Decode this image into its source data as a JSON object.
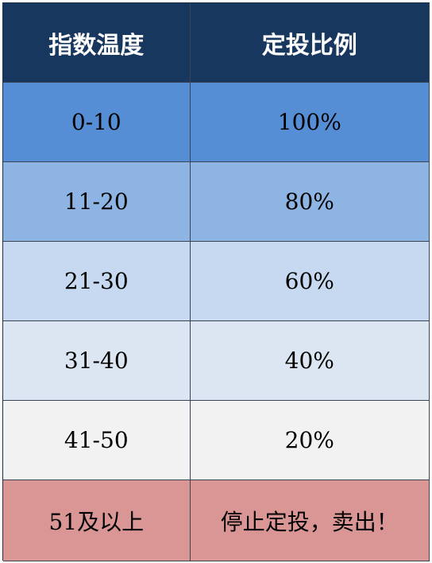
{
  "header": {
    "col1": "指数温度",
    "col2": "定投比例",
    "bg": "#17375e"
  },
  "rows": [
    {
      "range": "0-10",
      "ratio": "100%",
      "bg": "#558ed5"
    },
    {
      "range": "11-20",
      "ratio": "80%",
      "bg": "#8eb4e3"
    },
    {
      "range": "21-30",
      "ratio": "60%",
      "bg": "#c6d9f1"
    },
    {
      "range": "31-40",
      "ratio": "40%",
      "bg": "#dce6f2"
    },
    {
      "range": "41-50",
      "ratio": "20%",
      "bg": "#f2f2f2"
    },
    {
      "range": "51及以上",
      "ratio": "停止定投，卖出！",
      "bg": "#d99694"
    }
  ]
}
